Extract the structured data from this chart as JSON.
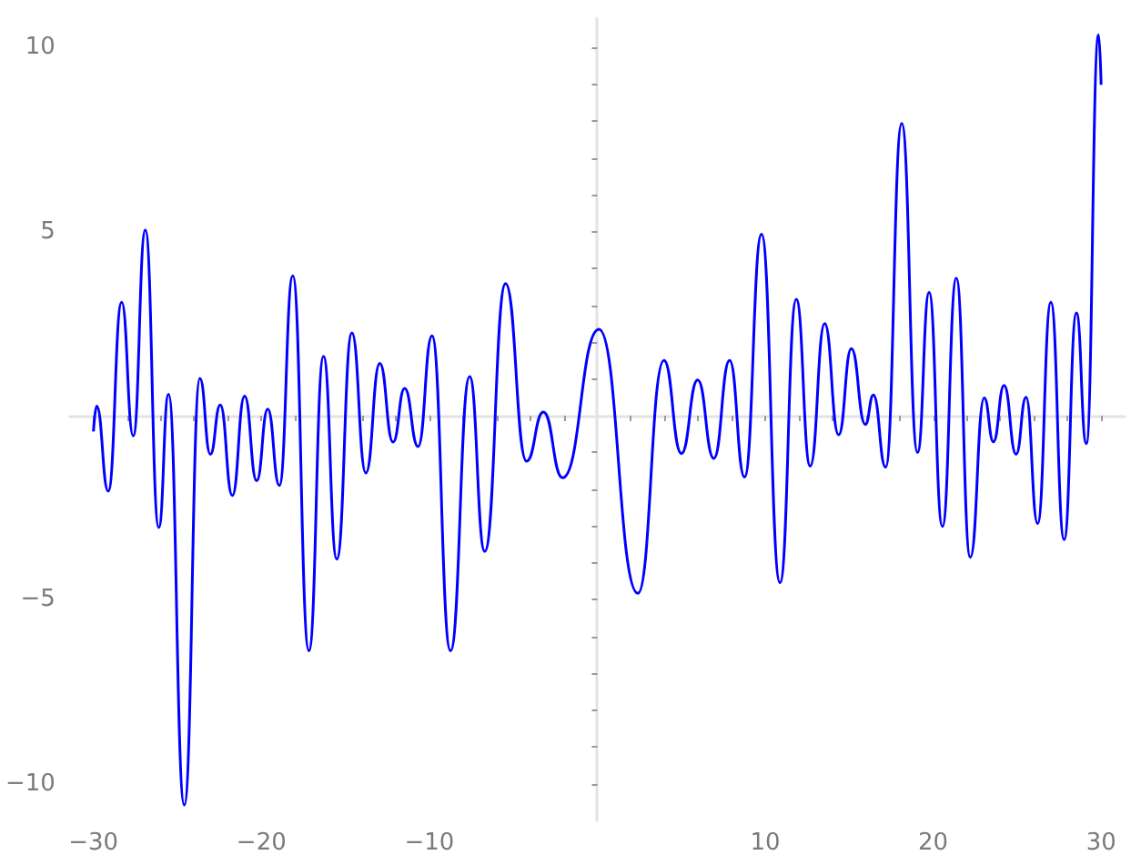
{
  "chart_data": {
    "type": "line",
    "x": [
      -30,
      -29.81,
      -29.12,
      -28.32,
      -27.63,
      -26.91,
      -26.11,
      -25.53,
      -24.59,
      -23.66,
      -23.04,
      -22.45,
      -21.73,
      -21.0,
      -20.28,
      -19.62,
      -18.93,
      -18.13,
      -17.17,
      -16.3,
      -15.51,
      -14.61,
      -13.78,
      -12.95,
      -12.16,
      -11.47,
      -10.67,
      -9.84,
      -8.74,
      -7.6,
      -6.7,
      -5.46,
      -4.21,
      -3.21,
      -2.07,
      0.1,
      2.42,
      3.97,
      5.01,
      5.98,
      6.94,
      7.88,
      8.77,
      9.78,
      10.88,
      11.85,
      12.68,
      13.54,
      14.37,
      15.13,
      15.96,
      16.44,
      17.17,
      18.13,
      19.07,
      19.76,
      20.55,
      21.38,
      22.21,
      23.04,
      23.59,
      24.22,
      24.94,
      25.53,
      26.22,
      27.01,
      27.8,
      28.53,
      29.12,
      29.85,
      30
    ],
    "series": [
      {
        "color": "#0000ff",
        "values": [
          -0.43,
          0.26,
          -2.05,
          3.08,
          -0.55,
          5.04,
          -3.04,
          0.58,
          -10.58,
          1.01,
          -1.05,
          0.29,
          -2.17,
          0.53,
          -1.77,
          0.18,
          -1.9,
          3.8,
          -6.39,
          1.61,
          -3.9,
          2.25,
          -1.56,
          1.42,
          -0.72,
          0.74,
          -0.84,
          2.17,
          -6.39,
          1.06,
          -3.69,
          3.59,
          -1.24,
          0.1,
          -1.69,
          2.35,
          -4.83,
          1.5,
          -1.03,
          0.97,
          -1.16,
          1.5,
          -1.67,
          4.93,
          -4.54,
          3.16,
          -1.37,
          2.5,
          -0.52,
          1.82,
          -0.24,
          0.56,
          -1.4,
          7.94,
          -1.0,
          3.35,
          -3.01,
          3.74,
          -3.85,
          0.48,
          -0.71,
          0.82,
          -1.05,
          0.5,
          -2.93,
          3.08,
          -3.37,
          2.79,
          -0.76,
          10.35,
          8.99
        ]
      }
    ],
    "xlim": [
      -31.4,
      31.4
    ],
    "ylim": [
      -11,
      10.8
    ],
    "xticks": [
      {
        "value": -30,
        "label": "−30"
      },
      {
        "value": -28,
        "label": null
      },
      {
        "value": -26,
        "label": null
      },
      {
        "value": -24,
        "label": null
      },
      {
        "value": -22,
        "label": null
      },
      {
        "value": -20,
        "label": "−20"
      },
      {
        "value": -18,
        "label": null
      },
      {
        "value": -16,
        "label": null
      },
      {
        "value": -14,
        "label": null
      },
      {
        "value": -12,
        "label": null
      },
      {
        "value": -10,
        "label": "−10"
      },
      {
        "value": -8,
        "label": null
      },
      {
        "value": -6,
        "label": null
      },
      {
        "value": -4,
        "label": null
      },
      {
        "value": -2,
        "label": null
      },
      {
        "value": 2,
        "label": null
      },
      {
        "value": 4,
        "label": null
      },
      {
        "value": 6,
        "label": null
      },
      {
        "value": 8,
        "label": null
      },
      {
        "value": 10,
        "label": "10"
      },
      {
        "value": 12,
        "label": null
      },
      {
        "value": 14,
        "label": null
      },
      {
        "value": 16,
        "label": null
      },
      {
        "value": 18,
        "label": null
      },
      {
        "value": 20,
        "label": "20"
      },
      {
        "value": 22,
        "label": null
      },
      {
        "value": 24,
        "label": null
      },
      {
        "value": 26,
        "label": null
      },
      {
        "value": 28,
        "label": null
      },
      {
        "value": 30,
        "label": "30"
      }
    ],
    "yticks": [
      {
        "value": -10,
        "label": "−10"
      },
      {
        "value": -9,
        "label": null
      },
      {
        "value": -8,
        "label": null
      },
      {
        "value": -7,
        "label": null
      },
      {
        "value": -6,
        "label": null
      },
      {
        "value": -5,
        "label": "−5"
      },
      {
        "value": -4,
        "label": null
      },
      {
        "value": -3,
        "label": null
      },
      {
        "value": -2,
        "label": null
      },
      {
        "value": -1,
        "label": null
      },
      {
        "value": 1,
        "label": null
      },
      {
        "value": 2,
        "label": null
      },
      {
        "value": 3,
        "label": null
      },
      {
        "value": 4,
        "label": null
      },
      {
        "value": 5,
        "label": "5"
      },
      {
        "value": 6,
        "label": null
      },
      {
        "value": 7,
        "label": null
      },
      {
        "value": 8,
        "label": null
      },
      {
        "value": 9,
        "label": null
      },
      {
        "value": 10,
        "label": "10"
      }
    ],
    "grid": false
  }
}
